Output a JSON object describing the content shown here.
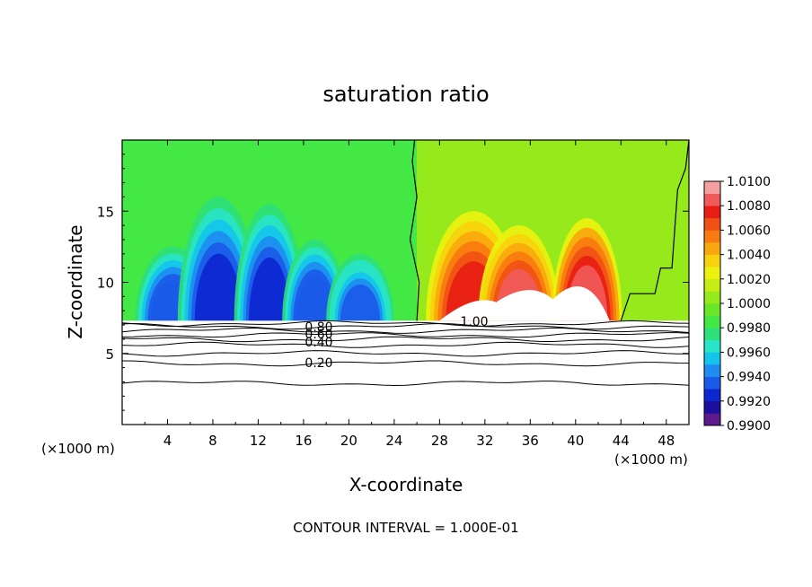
{
  "chart_data": {
    "type": "heatmap",
    "title": "saturation ratio",
    "xlabel": "X-coordinate",
    "ylabel": "Z-coordinate",
    "x_unit_left": "(×1000 m)",
    "x_unit_right": "(×1000 m)",
    "footer": "CONTOUR INTERVAL = 1.000E-01",
    "xlim": [
      0,
      50
    ],
    "ylim": [
      0,
      20
    ],
    "x_ticks": [
      4,
      8,
      12,
      16,
      20,
      24,
      28,
      32,
      36,
      40,
      44,
      48
    ],
    "x_tick_labels": [
      "4",
      "8",
      "12",
      "16",
      "20",
      "24",
      "28",
      "32",
      "36",
      "40",
      "44",
      "48"
    ],
    "y_ticks": [
      5,
      10,
      15
    ],
    "y_tick_labels": [
      "5",
      "10",
      "15"
    ],
    "colorbar": {
      "range": [
        0.99,
        1.01
      ],
      "labels": [
        "1.0100",
        "1.0080",
        "1.0060",
        "1.0040",
        "1.0020",
        "1.0000",
        "0.9980",
        "0.9960",
        "0.9940",
        "0.9920",
        "0.9900"
      ],
      "colors": [
        "#5c1a8c",
        "#1a0f9e",
        "#0d26cf",
        "#1a5ae8",
        "#1e8cf0",
        "#14c4ec",
        "#28e4c8",
        "#2ee07a",
        "#44e844",
        "#6ae628",
        "#96ea1c",
        "#c6ee14",
        "#ecf20e",
        "#f8d20c",
        "#f8a80c",
        "#f87a10",
        "#f05014",
        "#e81e14",
        "#f05a5a",
        "#f4a0a0"
      ]
    },
    "contour_labels": [
      "0.80",
      "0.60",
      "0.40",
      "0.20",
      "1.00"
    ],
    "lower_contours_z": [
      2.9,
      4.3,
      5.0,
      5.6,
      6.0,
      6.3,
      6.6,
      6.9,
      7.1
    ],
    "field_base_z": 7.3,
    "plumes": [
      {
        "x": 4.5,
        "w": 2.8,
        "top": 12.5,
        "value": 0.993
      },
      {
        "x": 8.5,
        "w": 3.0,
        "top": 16.0,
        "value": 0.9925
      },
      {
        "x": 13.0,
        "w": 2.6,
        "top": 15.5,
        "value": 0.9928
      },
      {
        "x": 17.0,
        "w": 2.4,
        "top": 13.0,
        "value": 0.993
      },
      {
        "x": 21.0,
        "w": 2.5,
        "top": 12.0,
        "value": 0.9935
      },
      {
        "x": 31.0,
        "w": 3.5,
        "top": 15.0,
        "value": 1.0075
      },
      {
        "x": 35.0,
        "w": 3.0,
        "top": 14.0,
        "value": 1.008
      },
      {
        "x": 41.0,
        "w": 2.6,
        "top": 14.5,
        "value": 1.009
      }
    ]
  }
}
